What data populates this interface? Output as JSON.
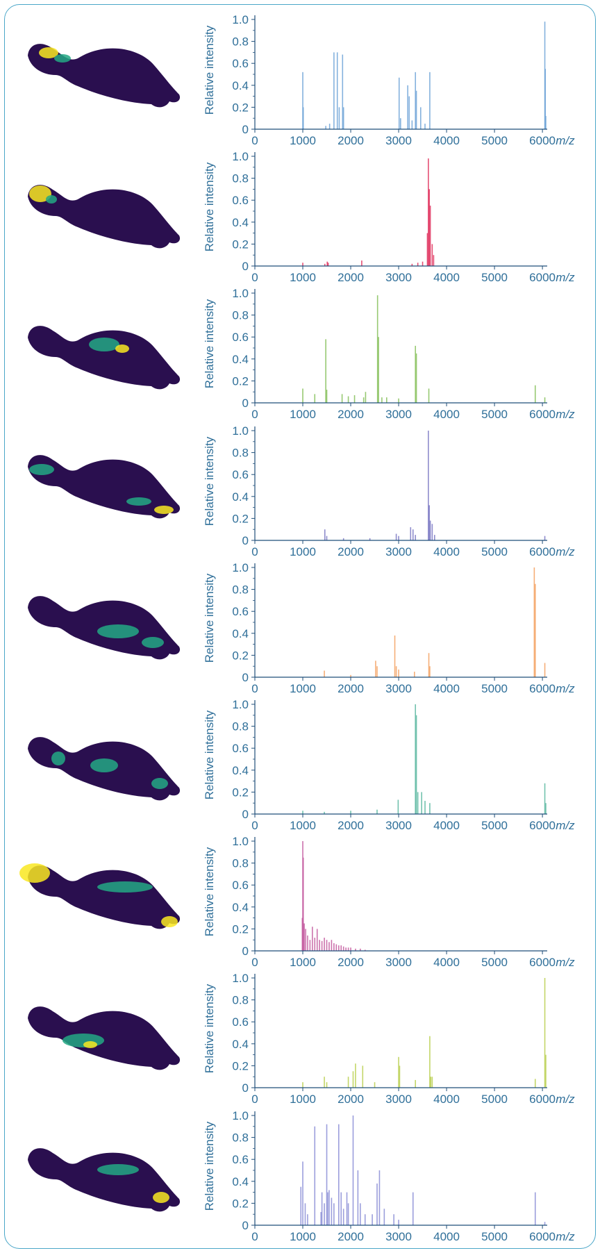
{
  "colors": {
    "frame": "#4aa6c8",
    "axis": "#1f4e79",
    "text": "#2f6f99",
    "tissue_background": "#2a0f4f",
    "tissue_mid": "#23a884",
    "tissue_high": "#f9e721"
  },
  "chart_data": [
    {
      "type": "bar",
      "ylabel": "Relative intensity",
      "xunit": "m/z",
      "xlim": [
        0,
        6100
      ],
      "ylim": [
        0,
        1.0
      ],
      "x_ticks": [
        "0",
        "1000",
        "2000",
        "3000",
        "4000",
        "5000",
        "6000"
      ],
      "y_ticks": [
        "0",
        "0.2",
        "0.4",
        "0.6",
        "0.8",
        "1.0"
      ],
      "color": "#6fa4d8",
      "peaks": [
        [
          1000,
          0.52
        ],
        [
          1010,
          0.2
        ],
        [
          1480,
          0.03
        ],
        [
          1560,
          0.05
        ],
        [
          1650,
          0.7
        ],
        [
          1720,
          0.7
        ],
        [
          1760,
          0.2
        ],
        [
          1830,
          0.68
        ],
        [
          1850,
          0.2
        ],
        [
          3010,
          0.47
        ],
        [
          3040,
          0.1
        ],
        [
          3190,
          0.4
        ],
        [
          3220,
          0.3
        ],
        [
          3280,
          0.08
        ],
        [
          3350,
          0.52
        ],
        [
          3370,
          0.35
        ],
        [
          3460,
          0.2
        ],
        [
          3550,
          0.05
        ],
        [
          3650,
          0.52
        ],
        [
          6050,
          0.98
        ],
        [
          6060,
          0.55
        ],
        [
          6070,
          0.12
        ]
      ]
    },
    {
      "type": "bar",
      "ylabel": "Relative intensity",
      "xunit": "m/z",
      "xlim": [
        0,
        6100
      ],
      "ylim": [
        0,
        1.0
      ],
      "x_ticks": [
        "0",
        "1000",
        "2000",
        "3000",
        "4000",
        "5000",
        "6000"
      ],
      "y_ticks": [
        "0",
        "0.2",
        "0.4",
        "0.6",
        "0.8",
        "1.0"
      ],
      "color": "#e0305c",
      "peaks": [
        [
          1000,
          0.03
        ],
        [
          1460,
          0.02
        ],
        [
          1510,
          0.04
        ],
        [
          1530,
          0.03
        ],
        [
          2230,
          0.05
        ],
        [
          3280,
          0.02
        ],
        [
          3400,
          0.03
        ],
        [
          3500,
          0.04
        ],
        [
          3600,
          0.3
        ],
        [
          3620,
          0.98
        ],
        [
          3640,
          0.7
        ],
        [
          3660,
          0.55
        ],
        [
          3700,
          0.2
        ],
        [
          3730,
          0.1
        ]
      ]
    },
    {
      "type": "bar",
      "ylabel": "Relative intensity",
      "xunit": "m/z",
      "xlim": [
        0,
        6100
      ],
      "ylim": [
        0,
        1.0
      ],
      "x_ticks": [
        "0",
        "1000",
        "2000",
        "3000",
        "4000",
        "5000",
        "6000"
      ],
      "y_ticks": [
        "0",
        "0.2",
        "0.4",
        "0.6",
        "0.8",
        "1.0"
      ],
      "color": "#86c05a",
      "peaks": [
        [
          1000,
          0.13
        ],
        [
          1250,
          0.08
        ],
        [
          1480,
          0.58
        ],
        [
          1500,
          0.12
        ],
        [
          1820,
          0.08
        ],
        [
          1950,
          0.06
        ],
        [
          2080,
          0.07
        ],
        [
          2270,
          0.05
        ],
        [
          2310,
          0.1
        ],
        [
          2560,
          0.98
        ],
        [
          2580,
          0.6
        ],
        [
          2650,
          0.05
        ],
        [
          2750,
          0.05
        ],
        [
          3000,
          0.04
        ],
        [
          3350,
          0.52
        ],
        [
          3370,
          0.45
        ],
        [
          3630,
          0.13
        ],
        [
          5850,
          0.16
        ],
        [
          6050,
          0.05
        ]
      ]
    },
    {
      "type": "bar",
      "ylabel": "Relative intensity",
      "xunit": "m/z",
      "xlim": [
        0,
        6100
      ],
      "ylim": [
        0,
        1.0
      ],
      "x_ticks": [
        "0",
        "1000",
        "2000",
        "3000",
        "4000",
        "5000",
        "6000"
      ],
      "y_ticks": [
        "0",
        "0.2",
        "0.4",
        "0.6",
        "0.8",
        "1.0"
      ],
      "color": "#7b78c4",
      "peaks": [
        [
          1460,
          0.1
        ],
        [
          1500,
          0.04
        ],
        [
          1850,
          0.02
        ],
        [
          2400,
          0.02
        ],
        [
          2950,
          0.06
        ],
        [
          3000,
          0.04
        ],
        [
          3250,
          0.12
        ],
        [
          3300,
          0.1
        ],
        [
          3350,
          0.05
        ],
        [
          3620,
          1.0
        ],
        [
          3640,
          0.32
        ],
        [
          3660,
          0.18
        ],
        [
          3700,
          0.15
        ],
        [
          3750,
          0.05
        ],
        [
          6050,
          0.04
        ]
      ]
    },
    {
      "type": "bar",
      "ylabel": "Relative intensity",
      "xunit": "m/z",
      "xlim": [
        0,
        6100
      ],
      "ylim": [
        0,
        1.0
      ],
      "x_ticks": [
        "0",
        "1000",
        "2000",
        "3000",
        "4000",
        "5000",
        "6000"
      ],
      "y_ticks": [
        "0",
        "0.2",
        "0.4",
        "0.6",
        "0.8",
        "1.0"
      ],
      "color": "#f4a160",
      "peaks": [
        [
          1450,
          0.06
        ],
        [
          2000,
          0.02
        ],
        [
          2520,
          0.15
        ],
        [
          2550,
          0.1
        ],
        [
          2920,
          0.38
        ],
        [
          2950,
          0.1
        ],
        [
          3000,
          0.07
        ],
        [
          3330,
          0.05
        ],
        [
          3630,
          0.22
        ],
        [
          3650,
          0.1
        ],
        [
          5830,
          1.0
        ],
        [
          5850,
          0.85
        ],
        [
          6050,
          0.13
        ]
      ]
    },
    {
      "type": "bar",
      "ylabel": "Relative intensity",
      "xunit": "m/z",
      "xlim": [
        0,
        6100
      ],
      "ylim": [
        0,
        1.0
      ],
      "x_ticks": [
        "0",
        "1000",
        "2000",
        "3000",
        "4000",
        "5000",
        "6000"
      ],
      "y_ticks": [
        "0",
        "0.2",
        "0.4",
        "0.6",
        "0.8",
        "1.0"
      ],
      "color": "#5ab8a0",
      "peaks": [
        [
          1000,
          0.03
        ],
        [
          1450,
          0.02
        ],
        [
          2000,
          0.03
        ],
        [
          2550,
          0.04
        ],
        [
          2990,
          0.13
        ],
        [
          3350,
          1.0
        ],
        [
          3370,
          0.9
        ],
        [
          3400,
          0.2
        ],
        [
          3480,
          0.2
        ],
        [
          3550,
          0.12
        ],
        [
          3650,
          0.1
        ],
        [
          6050,
          0.28
        ],
        [
          6070,
          0.1
        ]
      ]
    },
    {
      "type": "bar",
      "ylabel": "Relative intensity",
      "xunit": "m/z",
      "xlim": [
        0,
        6100
      ],
      "ylim": [
        0,
        1.0
      ],
      "x_ticks": [
        "0",
        "1000",
        "2000",
        "3000",
        "4000",
        "5000",
        "6000"
      ],
      "y_ticks": [
        "0",
        "0.2",
        "0.4",
        "0.6",
        "0.8",
        "1.0"
      ],
      "color": "#c35a9e",
      "peaks": [
        [
          990,
          0.3
        ],
        [
          1000,
          1.0
        ],
        [
          1010,
          0.85
        ],
        [
          1030,
          0.25
        ],
        [
          1060,
          0.2
        ],
        [
          1100,
          0.14
        ],
        [
          1150,
          0.1
        ],
        [
          1200,
          0.22
        ],
        [
          1250,
          0.12
        ],
        [
          1300,
          0.2
        ],
        [
          1350,
          0.1
        ],
        [
          1400,
          0.09
        ],
        [
          1450,
          0.12
        ],
        [
          1500,
          0.1
        ],
        [
          1550,
          0.08
        ],
        [
          1600,
          0.1
        ],
        [
          1650,
          0.07
        ],
        [
          1700,
          0.06
        ],
        [
          1750,
          0.05
        ],
        [
          1800,
          0.05
        ],
        [
          1850,
          0.04
        ],
        [
          1900,
          0.03
        ],
        [
          1950,
          0.03
        ],
        [
          2000,
          0.03
        ],
        [
          2100,
          0.02
        ],
        [
          2200,
          0.02
        ],
        [
          2300,
          0.01
        ]
      ]
    },
    {
      "type": "bar",
      "ylabel": "Relative intensity",
      "xunit": "m/z",
      "xlim": [
        0,
        6100
      ],
      "ylim": [
        0,
        1.0
      ],
      "x_ticks": [
        "0",
        "1000",
        "2000",
        "3000",
        "4000",
        "5000",
        "6000"
      ],
      "y_ticks": [
        "0",
        "0.2",
        "0.4",
        "0.6",
        "0.8",
        "1.0"
      ],
      "color": "#b9cf4e",
      "peaks": [
        [
          1000,
          0.05
        ],
        [
          1450,
          0.1
        ],
        [
          1500,
          0.05
        ],
        [
          1950,
          0.1
        ],
        [
          2050,
          0.15
        ],
        [
          2100,
          0.22
        ],
        [
          2250,
          0.2
        ],
        [
          2500,
          0.05
        ],
        [
          3000,
          0.28
        ],
        [
          3020,
          0.2
        ],
        [
          3350,
          0.07
        ],
        [
          3650,
          0.47
        ],
        [
          3670,
          0.1
        ],
        [
          3700,
          0.1
        ],
        [
          5850,
          0.08
        ],
        [
          6050,
          1.0
        ],
        [
          6070,
          0.3
        ]
      ]
    },
    {
      "type": "bar",
      "ylabel": "Relative intensity",
      "xunit": "m/z",
      "xlim": [
        0,
        6100
      ],
      "ylim": [
        0,
        1.0
      ],
      "x_ticks": [
        "0",
        "1000",
        "2000",
        "3000",
        "4000",
        "5000",
        "6000"
      ],
      "y_ticks": [
        "0",
        "0.2",
        "0.4",
        "0.6",
        "0.8",
        "1.0"
      ],
      "color": "#8a8ed6",
      "peaks": [
        [
          960,
          0.35
        ],
        [
          1000,
          0.58
        ],
        [
          1050,
          0.2
        ],
        [
          1100,
          0.1
        ],
        [
          1250,
          0.9
        ],
        [
          1380,
          0.12
        ],
        [
          1400,
          0.3
        ],
        [
          1450,
          0.2
        ],
        [
          1500,
          0.92
        ],
        [
          1520,
          0.3
        ],
        [
          1550,
          0.32
        ],
        [
          1600,
          0.25
        ],
        [
          1650,
          0.2
        ],
        [
          1750,
          0.92
        ],
        [
          1800,
          0.3
        ],
        [
          1850,
          0.15
        ],
        [
          1920,
          0.3
        ],
        [
          1950,
          0.2
        ],
        [
          2050,
          1.0
        ],
        [
          2150,
          0.5
        ],
        [
          2200,
          0.2
        ],
        [
          2300,
          0.1
        ],
        [
          2450,
          0.1
        ],
        [
          2550,
          0.38
        ],
        [
          2600,
          0.5
        ],
        [
          2700,
          0.15
        ],
        [
          2900,
          0.1
        ],
        [
          3000,
          0.05
        ],
        [
          3300,
          0.3
        ],
        [
          5850,
          0.3
        ],
        [
          6050,
          0.03
        ]
      ]
    }
  ]
}
